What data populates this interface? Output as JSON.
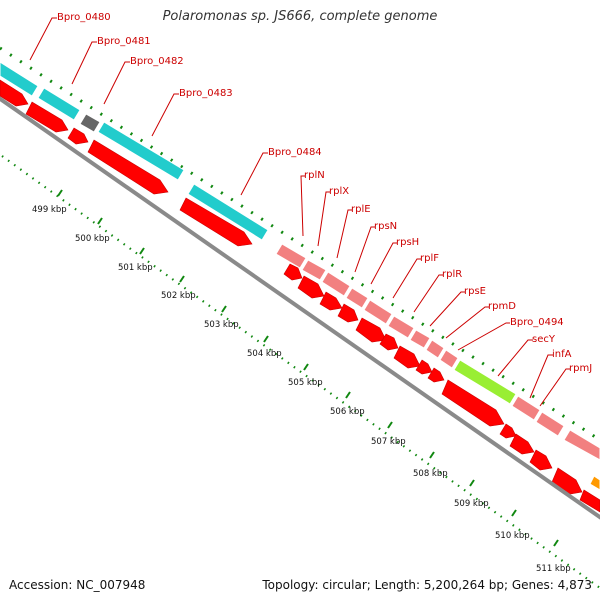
{
  "title": "Polaromonas sp. JS666, complete genome",
  "footer": {
    "accession": "Accession: NC_007948",
    "topology": "Topology: circular; Length: 5,200,264 bp; Genes: 4,873"
  },
  "colors": {
    "background": "#ffffff",
    "label": "#cc0000",
    "tick": "#118811",
    "backbone": "#888888",
    "cds": "#ff0000",
    "cyan_gene": "#22cccc",
    "ribosomal_gene": "#f28080",
    "grey_gene": "#666666",
    "green_gene": "#99ee33",
    "orange_gene": "#ff9900"
  },
  "gene_labels": [
    "Bpro_0480",
    "Bpro_0481",
    "Bpro_0482",
    "Bpro_0483",
    "Bpro_0484",
    "rplN",
    "rplX",
    "rplE",
    "rpsN",
    "rpsH",
    "rplF",
    "rplR",
    "rpsE",
    "rpmD",
    "Bpro_0494",
    "secY",
    "infA",
    "rpmJ"
  ],
  "scale_labels": [
    "499 kbp",
    "500 kbp",
    "501 kbp",
    "502 kbp",
    "503 kbp",
    "504 kbp",
    "505 kbp",
    "506 kbp",
    "507 kbp",
    "508 kbp",
    "509 kbp",
    "510 kbp",
    "511 kbp"
  ]
}
